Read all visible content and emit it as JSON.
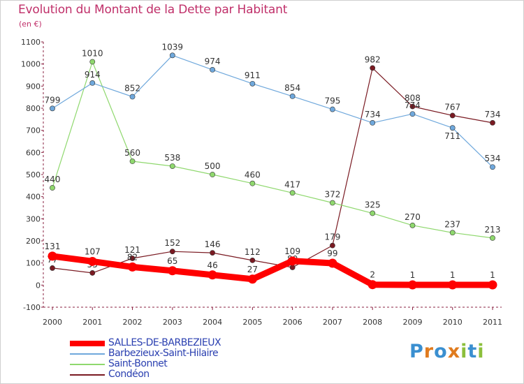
{
  "title": "Evolution du Montant de la Dette par Habitant",
  "subtitle": "(en €)",
  "logo": {
    "letters": [
      "P",
      "r",
      "o",
      "x",
      "i",
      "t",
      "i"
    ],
    "colors": [
      "#3a8fd0",
      "#e07b1e",
      "#3a8fd0",
      "#e07b1e",
      "#8cbf3c",
      "#3a8fd0",
      "#8cbf3c"
    ]
  },
  "chart_data": {
    "type": "line",
    "x": [
      "2000",
      "2001",
      "2002",
      "2003",
      "2004",
      "2005",
      "2006",
      "2007",
      "2008",
      "2009",
      "2010",
      "2011"
    ],
    "ylim": [
      -100,
      1100
    ],
    "yticks": [
      "-100",
      "0",
      "100",
      "200",
      "300",
      "400",
      "500",
      "600",
      "700",
      "800",
      "900",
      "1000",
      "1100"
    ],
    "grid": false,
    "legend_position": "bottom-left",
    "series": [
      {
        "name": "Condéon",
        "color": "#7a1a22",
        "values": [
          77,
          55,
          121,
          152,
          146,
          112,
          80,
          179,
          982,
          808,
          767,
          734
        ],
        "labels": [
          "77",
          "55",
          "121",
          "152",
          "146",
          "112",
          "80",
          "179",
          "982",
          "808",
          "767",
          "734"
        ],
        "label_pos": [
          "above",
          "above",
          "above",
          "above",
          "above",
          "above",
          "above",
          "above",
          "above",
          "above",
          "above",
          "above"
        ]
      },
      {
        "name": "Saint-Bonnet",
        "color": "#8fd86e",
        "values": [
          440,
          1010,
          560,
          538,
          500,
          460,
          417,
          372,
          325,
          270,
          237,
          213
        ],
        "labels": [
          "440",
          "1010",
          "560",
          "538",
          "500",
          "460",
          "417",
          "372",
          "325",
          "270",
          "237",
          "213"
        ],
        "label_pos": [
          "above",
          "above",
          "above",
          "above",
          "above",
          "above",
          "above",
          "above",
          "above",
          "above",
          "above",
          "above"
        ]
      },
      {
        "name": "Barbezieux-Saint-Hilaire",
        "color": "#6fa8dc",
        "values": [
          799,
          914,
          852,
          1039,
          974,
          911,
          854,
          795,
          734,
          774,
          711,
          534
        ],
        "labels": [
          "799",
          "914",
          "852",
          "1039",
          "974",
          "911",
          "854",
          "795",
          "734",
          "774",
          "711",
          "534"
        ],
        "label_pos": [
          "above",
          "above",
          "above",
          "above",
          "above",
          "above",
          "above",
          "above",
          "above",
          "above",
          "below",
          "above"
        ]
      },
      {
        "name": "SALLES-DE-BARBEZIEUX",
        "color": "#ff0000",
        "thick": true,
        "values": [
          131,
          107,
          82,
          65,
          46,
          27,
          109,
          99,
          2,
          1,
          1,
          1
        ],
        "labels": [
          "131",
          "107",
          "82",
          "65",
          "46",
          "27",
          "109",
          "99",
          "2",
          "1",
          "1",
          "1"
        ],
        "label_pos": [
          "above",
          "above",
          "above",
          "above",
          "above",
          "above",
          "above",
          "above",
          "above",
          "above",
          "above",
          "above"
        ]
      }
    ],
    "legend_order": [
      "SALLES-DE-BARBEZIEUX",
      "Barbezieux-Saint-Hilaire",
      "Saint-Bonnet",
      "Condéon"
    ]
  }
}
